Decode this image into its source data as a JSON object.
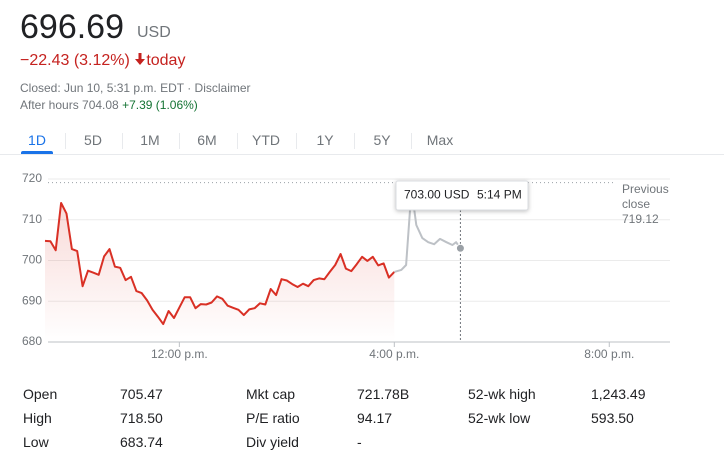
{
  "header": {
    "price": "696.69",
    "currency": "USD",
    "change": "−22.43 (3.12%)",
    "change_period": "today",
    "closed": "Closed: Jun 10, 5:31 p.m. EDT · ",
    "disclaimer": "Disclaimer",
    "after_hours": "After hours 704.08",
    "after_hours_change": "+7.39 (1.06%)"
  },
  "tabs": [
    "1D",
    "5D",
    "1M",
    "6M",
    "YTD",
    "1Y",
    "5Y",
    "Max"
  ],
  "active_tab": "1D",
  "chart_data": {
    "type": "line",
    "xlim": [
      9.5,
      21.13
    ],
    "xticks": [
      {
        "value": 12,
        "label": "12:00 p.m."
      },
      {
        "value": 16,
        "label": "4:00 p.m."
      },
      {
        "value": 20,
        "label": "8:00 p.m."
      }
    ],
    "ylim": [
      680,
      720
    ],
    "yticks": [
      680,
      690,
      700,
      710,
      720
    ],
    "grid": true,
    "previous_close": {
      "label": "Previous close",
      "value": 719.12
    },
    "tooltip": {
      "price": "703.00 USD",
      "time": "5:14 PM"
    },
    "series": [
      {
        "color": "#d93025",
        "x": [
          9.5,
          9.6,
          9.7,
          9.8,
          9.9,
          10.0,
          10.1,
          10.2,
          10.3,
          10.4,
          10.5,
          10.6,
          10.7,
          10.8,
          10.9,
          11.0,
          11.1,
          11.2,
          11.3,
          11.4,
          11.5,
          11.6,
          11.7,
          11.8,
          11.9,
          12.0,
          12.1,
          12.2,
          12.3,
          12.4,
          12.5,
          12.6,
          12.7,
          12.8,
          12.9,
          13.0,
          13.1,
          13.2,
          13.3,
          13.4,
          13.5,
          13.6,
          13.7,
          13.8,
          13.9,
          14.0,
          14.1,
          14.2,
          14.3,
          14.4,
          14.5,
          14.6,
          14.7,
          14.8,
          14.9,
          15.0,
          15.1,
          15.2,
          15.3,
          15.4,
          15.5,
          15.6,
          15.7,
          15.8,
          15.9,
          16.0
        ],
        "values": [
          704.8,
          704.7,
          702.5,
          714.1,
          711.5,
          702.8,
          702.3,
          693.7,
          697.5,
          697,
          696.5,
          701,
          702.8,
          698.5,
          698.2,
          695.2,
          696,
          692.5,
          692,
          690.2,
          687.9,
          686.2,
          684.4,
          687.6,
          685.9,
          688.5,
          691,
          691,
          688.3,
          689.3,
          689.2,
          689.7,
          691.2,
          690.6,
          688.9,
          688.4,
          687.9,
          686.6,
          688,
          688.3,
          689.5,
          689.2,
          693,
          691.5,
          695.4,
          695.1,
          694.2,
          693.5,
          694.3,
          693.7,
          695.2,
          695.6,
          695.4,
          697.2,
          698.9,
          701.6,
          698,
          697.4,
          699.1,
          700.9,
          699.9,
          700.9,
          698.8,
          699.3,
          695.8,
          697.2
        ]
      },
      {
        "color": "#bdc1c6",
        "x": [
          16.0,
          16.13,
          16.22,
          16.32,
          16.41,
          16.52,
          16.63,
          16.74,
          16.85,
          16.97,
          17.08,
          17.15,
          17.23
        ],
        "values": [
          697.2,
          697.7,
          698.9,
          717.5,
          708.7,
          705.5,
          704.5,
          704,
          705.3,
          704.5,
          703.8,
          704.5,
          703
        ]
      }
    ]
  },
  "stats": [
    [
      [
        "Open",
        "705.47"
      ],
      [
        "High",
        "718.50"
      ],
      [
        "Low",
        "683.74"
      ]
    ],
    [
      [
        "Mkt cap",
        "721.78B"
      ],
      [
        "P/E ratio",
        "94.17"
      ],
      [
        "Div yield",
        "-"
      ]
    ],
    [
      [
        "52-wk high",
        "1,243.49"
      ],
      [
        "52-wk low",
        "593.50"
      ]
    ]
  ]
}
